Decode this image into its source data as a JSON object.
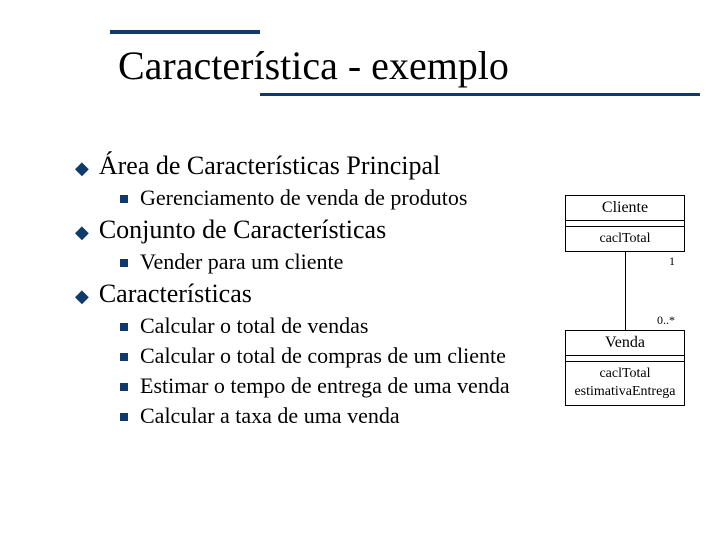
{
  "colors": {
    "accent": "#0f3a6b",
    "text": "#000000",
    "bg": "#ffffff",
    "border": "#000000"
  },
  "title": "Característica - exemplo",
  "bullets": {
    "l1_0": "Área de Características Principal",
    "l1_0_l2_0": "Gerenciamento de venda de produtos",
    "l1_1": "Conjunto de Características",
    "l1_1_l2_0": "Vender para um cliente",
    "l1_2": "Características",
    "l1_2_l2_0": "Calcular o total de vendas",
    "l1_2_l2_1": "Calcular o total de compras de um cliente",
    "l1_2_l2_2": "Estimar o tempo de entrega de uma venda",
    "l1_2_l2_3": "Calcular a taxa de uma venda"
  },
  "uml": {
    "class1_name": "Cliente",
    "class1_op1": "caclTotal",
    "mult_top": "1",
    "mult_bottom": "0..*",
    "class2_name": "Venda",
    "class2_op1": "caclTotal",
    "class2_op2": "estimativaEntrega"
  },
  "glyphs": {
    "diamond": "◆"
  }
}
